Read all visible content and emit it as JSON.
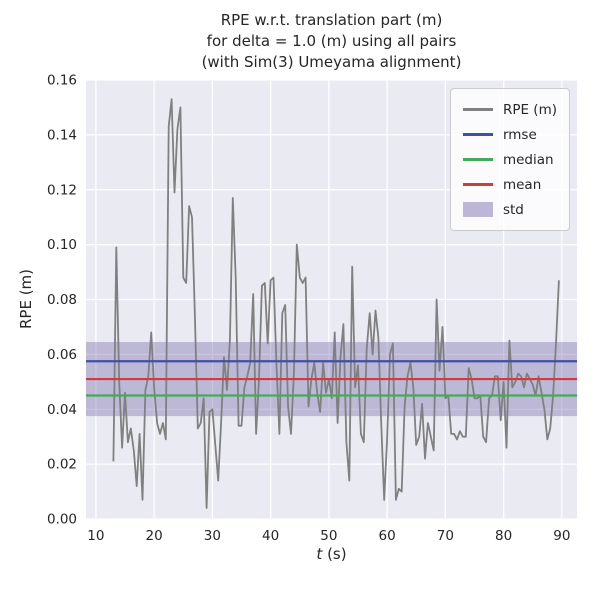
{
  "figure": {
    "title_lines": [
      "RPE w.r.t. translation part (m)",
      "for delta = 1.0 (m) using all pairs",
      "(with Sim(3) Umeyama alignment)"
    ],
    "ylabel": "RPE (m)",
    "xlabel": "t (s)",
    "xlabel_var": "t",
    "xlabel_rest": " (s)"
  },
  "legend": {
    "position": "upper right",
    "items": [
      {
        "label": "RPE (m)",
        "color": "#808080",
        "swatch": "line"
      },
      {
        "label": "rmse",
        "color": "#3f51a3",
        "swatch": "line"
      },
      {
        "label": "median",
        "color": "#44a959",
        "swatch": "line"
      },
      {
        "label": "mean",
        "color": "#cc3d3d",
        "swatch": "line"
      },
      {
        "label": "std",
        "color": "#8172b2",
        "swatch": "patch"
      }
    ]
  },
  "chart_data": {
    "type": "line",
    "title": "RPE w.r.t. translation part (m) for delta = 1.0 (m) using all pairs (with Sim(3) Umeyama alignment)",
    "xlabel": "t (s)",
    "ylabel": "RPE (m)",
    "xlim": [
      8.3,
      92.6
    ],
    "ylim": [
      0.0,
      0.16
    ],
    "xticks": [
      10,
      20,
      30,
      40,
      50,
      60,
      70,
      80,
      90
    ],
    "yticks": [
      0.0,
      0.02,
      0.04,
      0.06,
      0.08,
      0.1,
      0.12,
      0.14,
      0.16
    ],
    "grid": true,
    "legend_position": "upper right",
    "colors": {
      "axes_bg": "#eaeaf2",
      "grid": "#ffffff",
      "rpe": "#808080",
      "rmse": "#3f51a3",
      "median": "#44a959",
      "mean": "#cc3d3d",
      "std_fill": "#8172b2",
      "text": "#262626"
    },
    "stats": {
      "rmse": 0.0575,
      "mean": 0.051,
      "median": 0.045,
      "std": 0.0135,
      "std_band": [
        0.0375,
        0.0645
      ]
    },
    "series": [
      {
        "name": "RPE (m)",
        "x": [
          13,
          13.5,
          14,
          14.5,
          15,
          15.5,
          16,
          16.5,
          17,
          17.5,
          18,
          18.5,
          19,
          19.5,
          20,
          20.5,
          21,
          21.5,
          22,
          22.5,
          23,
          23.5,
          24,
          24.5,
          25,
          25.5,
          26,
          26.5,
          27,
          27.5,
          28,
          28.5,
          29,
          29.5,
          30,
          30.5,
          31,
          31.5,
          32,
          32.5,
          33,
          33.5,
          34,
          34.5,
          35,
          35.5,
          36,
          36.5,
          37,
          37.5,
          38,
          38.5,
          39,
          39.5,
          40,
          40.5,
          41,
          41.5,
          42,
          42.5,
          43,
          43.5,
          44,
          44.5,
          45,
          45.5,
          46,
          46.5,
          47,
          47.5,
          48,
          48.5,
          49,
          49.5,
          50,
          50.5,
          51,
          51.5,
          52,
          52.5,
          53,
          53.5,
          54,
          54.5,
          55,
          55.5,
          56,
          56.5,
          57,
          57.5,
          58,
          58.5,
          59,
          59.5,
          60,
          60.5,
          61,
          61.5,
          62,
          62.5,
          63,
          63.5,
          64,
          64.5,
          65,
          65.5,
          66,
          66.5,
          67,
          67.5,
          68,
          68.5,
          69,
          69.5,
          70,
          70.5,
          71,
          71.5,
          72,
          72.5,
          73,
          73.5,
          74,
          74.5,
          75,
          75.5,
          76,
          76.5,
          77,
          77.5,
          78,
          78.5,
          79,
          79.5,
          80,
          80.5,
          81,
          81.5,
          82,
          82.5,
          83,
          83.5,
          84,
          84.5,
          85,
          85.5,
          86,
          86.5,
          87,
          87.5,
          88,
          88.5,
          89,
          89.5
        ],
        "y": [
          0.021,
          0.099,
          0.05,
          0.026,
          0.046,
          0.028,
          0.033,
          0.025,
          0.012,
          0.031,
          0.007,
          0.047,
          0.052,
          0.068,
          0.048,
          0.035,
          0.031,
          0.035,
          0.029,
          0.143,
          0.153,
          0.119,
          0.142,
          0.15,
          0.088,
          0.086,
          0.114,
          0.11,
          0.074,
          0.033,
          0.035,
          0.044,
          0.004,
          0.039,
          0.04,
          0.027,
          0.014,
          0.035,
          0.059,
          0.047,
          0.065,
          0.117,
          0.088,
          0.034,
          0.034,
          0.048,
          0.052,
          0.057,
          0.082,
          0.031,
          0.051,
          0.085,
          0.086,
          0.064,
          0.087,
          0.088,
          0.056,
          0.031,
          0.075,
          0.078,
          0.041,
          0.031,
          0.053,
          0.1,
          0.088,
          0.086,
          0.088,
          0.041,
          0.051,
          0.057,
          0.046,
          0.039,
          0.057,
          0.046,
          0.051,
          0.044,
          0.068,
          0.035,
          0.059,
          0.071,
          0.028,
          0.014,
          0.092,
          0.048,
          0.056,
          0.031,
          0.028,
          0.062,
          0.075,
          0.06,
          0.076,
          0.066,
          0.034,
          0.007,
          0.029,
          0.06,
          0.064,
          0.007,
          0.011,
          0.01,
          0.041,
          0.052,
          0.057,
          0.048,
          0.027,
          0.03,
          0.042,
          0.022,
          0.035,
          0.03,
          0.025,
          0.08,
          0.054,
          0.07,
          0.044,
          0.045,
          0.031,
          0.031,
          0.029,
          0.032,
          0.03,
          0.03,
          0.055,
          0.051,
          0.044,
          0.044,
          0.045,
          0.03,
          0.028,
          0.044,
          0.045,
          0.052,
          0.052,
          0.036,
          0.05,
          0.026,
          0.065,
          0.048,
          0.05,
          0.053,
          0.052,
          0.048,
          0.053,
          0.051,
          0.049,
          0.045,
          0.052,
          0.046,
          0.04,
          0.029,
          0.033,
          0.045,
          0.064,
          0.087
        ]
      }
    ]
  }
}
